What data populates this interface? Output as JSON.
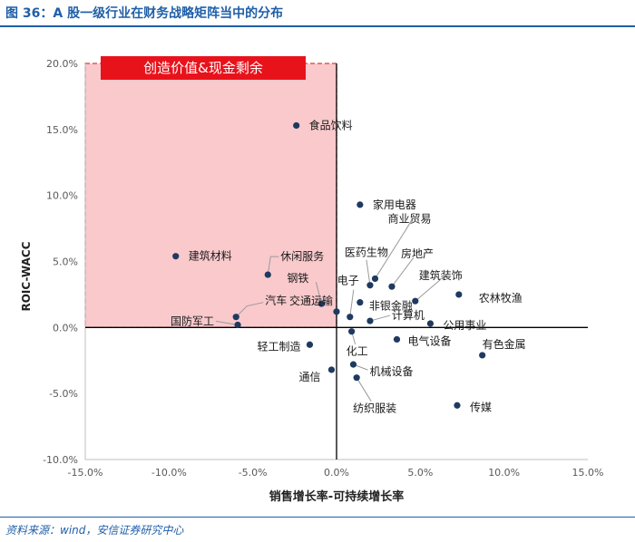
{
  "figure_title": "图 36：A 股一级行业在财务战略矩阵当中的分布",
  "source_note": "资料来源：wind，安信证券研究中心",
  "colors": {
    "title": "#1f5fa8",
    "point": "#1f3a60",
    "quadrant_fill": "#f9c9cc",
    "quadrant_border": "#e23b3b",
    "badge": "#e8121b"
  },
  "chart_data": {
    "type": "scatter",
    "xlabel": "销售增长率-可持续增长率",
    "ylabel": "ROIC-WACC",
    "xlim": [
      -0.15,
      0.15
    ],
    "ylim": [
      -0.1,
      0.2
    ],
    "xticks": [
      {
        "v": -0.15,
        "label": "-15.0%"
      },
      {
        "v": -0.1,
        "label": "-10.0%"
      },
      {
        "v": -0.05,
        "label": "-5.0%"
      },
      {
        "v": 0.0,
        "label": "0.0%"
      },
      {
        "v": 0.05,
        "label": "5.0%"
      },
      {
        "v": 0.1,
        "label": "10.0%"
      },
      {
        "v": 0.15,
        "label": "15.0%"
      }
    ],
    "yticks": [
      {
        "v": -0.1,
        "label": "-10.0%"
      },
      {
        "v": -0.05,
        "label": "-5.0%"
      },
      {
        "v": 0.0,
        "label": "0.0%"
      },
      {
        "v": 0.05,
        "label": "5.0%"
      },
      {
        "v": 0.1,
        "label": "10.0%"
      },
      {
        "v": 0.15,
        "label": "15.0%"
      },
      {
        "v": 0.2,
        "label": "20.0%"
      }
    ],
    "grid": false,
    "highlight_region": {
      "label": "创造价值&现金剩余",
      "x": [
        -0.15,
        0.0
      ],
      "y": [
        0.0,
        0.2
      ]
    },
    "points": [
      {
        "label": "食品饮料",
        "x": -0.024,
        "y": 0.153
      },
      {
        "label": "建筑材料",
        "x": -0.096,
        "y": 0.054
      },
      {
        "label": "休闲服务",
        "x": -0.041,
        "y": 0.04
      },
      {
        "label": "汽车",
        "x": -0.06,
        "y": 0.008
      },
      {
        "label": "国防军工",
        "x": -0.059,
        "y": 0.002
      },
      {
        "label": "钢铁",
        "x": -0.009,
        "y": 0.018
      },
      {
        "label": "交通运输",
        "x": 0.0,
        "y": 0.012
      },
      {
        "label": "家用电器",
        "x": 0.014,
        "y": 0.093
      },
      {
        "label": "医药生物",
        "x": 0.02,
        "y": 0.032
      },
      {
        "label": "商业贸易",
        "x": 0.023,
        "y": 0.037
      },
      {
        "label": "房地产",
        "x": 0.033,
        "y": 0.031
      },
      {
        "label": "建筑装饰",
        "x": 0.047,
        "y": 0.02
      },
      {
        "label": "农林牧渔",
        "x": 0.073,
        "y": 0.025
      },
      {
        "label": "电子",
        "x": 0.008,
        "y": 0.008
      },
      {
        "label": "非银金融",
        "x": 0.014,
        "y": 0.019
      },
      {
        "label": "计算机",
        "x": 0.02,
        "y": 0.005
      },
      {
        "label": "公用事业",
        "x": 0.056,
        "y": 0.003
      },
      {
        "label": "化工",
        "x": 0.009,
        "y": -0.003
      },
      {
        "label": "电气设备",
        "x": 0.036,
        "y": -0.009
      },
      {
        "label": "轻工制造",
        "x": -0.016,
        "y": -0.013
      },
      {
        "label": "有色金属",
        "x": 0.087,
        "y": -0.021
      },
      {
        "label": "机械设备",
        "x": 0.01,
        "y": -0.028
      },
      {
        "label": "通信",
        "x": -0.003,
        "y": -0.032
      },
      {
        "label": "纺织服装",
        "x": 0.012,
        "y": -0.038
      },
      {
        "label": "传媒",
        "x": 0.072,
        "y": -0.059
      }
    ]
  }
}
